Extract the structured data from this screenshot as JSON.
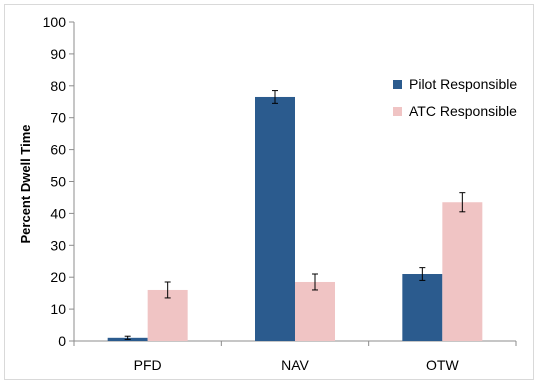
{
  "chart_data": {
    "type": "bar",
    "categories": [
      "PFD",
      "NAV",
      "OTW"
    ],
    "series": [
      {
        "name": "Pilot Responsible",
        "color": "#2b5b8e",
        "values": [
          1,
          76.5,
          21
        ],
        "errors": [
          0.5,
          2,
          2
        ]
      },
      {
        "name": "ATC Responsible",
        "color": "#f0c4c4",
        "values": [
          16,
          18.5,
          43.5
        ],
        "errors": [
          2.5,
          2.5,
          3
        ]
      }
    ],
    "ylabel": "Percent Dwell Time",
    "xlabel": "",
    "ylim": [
      0,
      100
    ],
    "yticks": [
      0,
      10,
      20,
      30,
      40,
      50,
      60,
      70,
      80,
      90,
      100
    ],
    "grid": false,
    "legend_position": "right"
  }
}
